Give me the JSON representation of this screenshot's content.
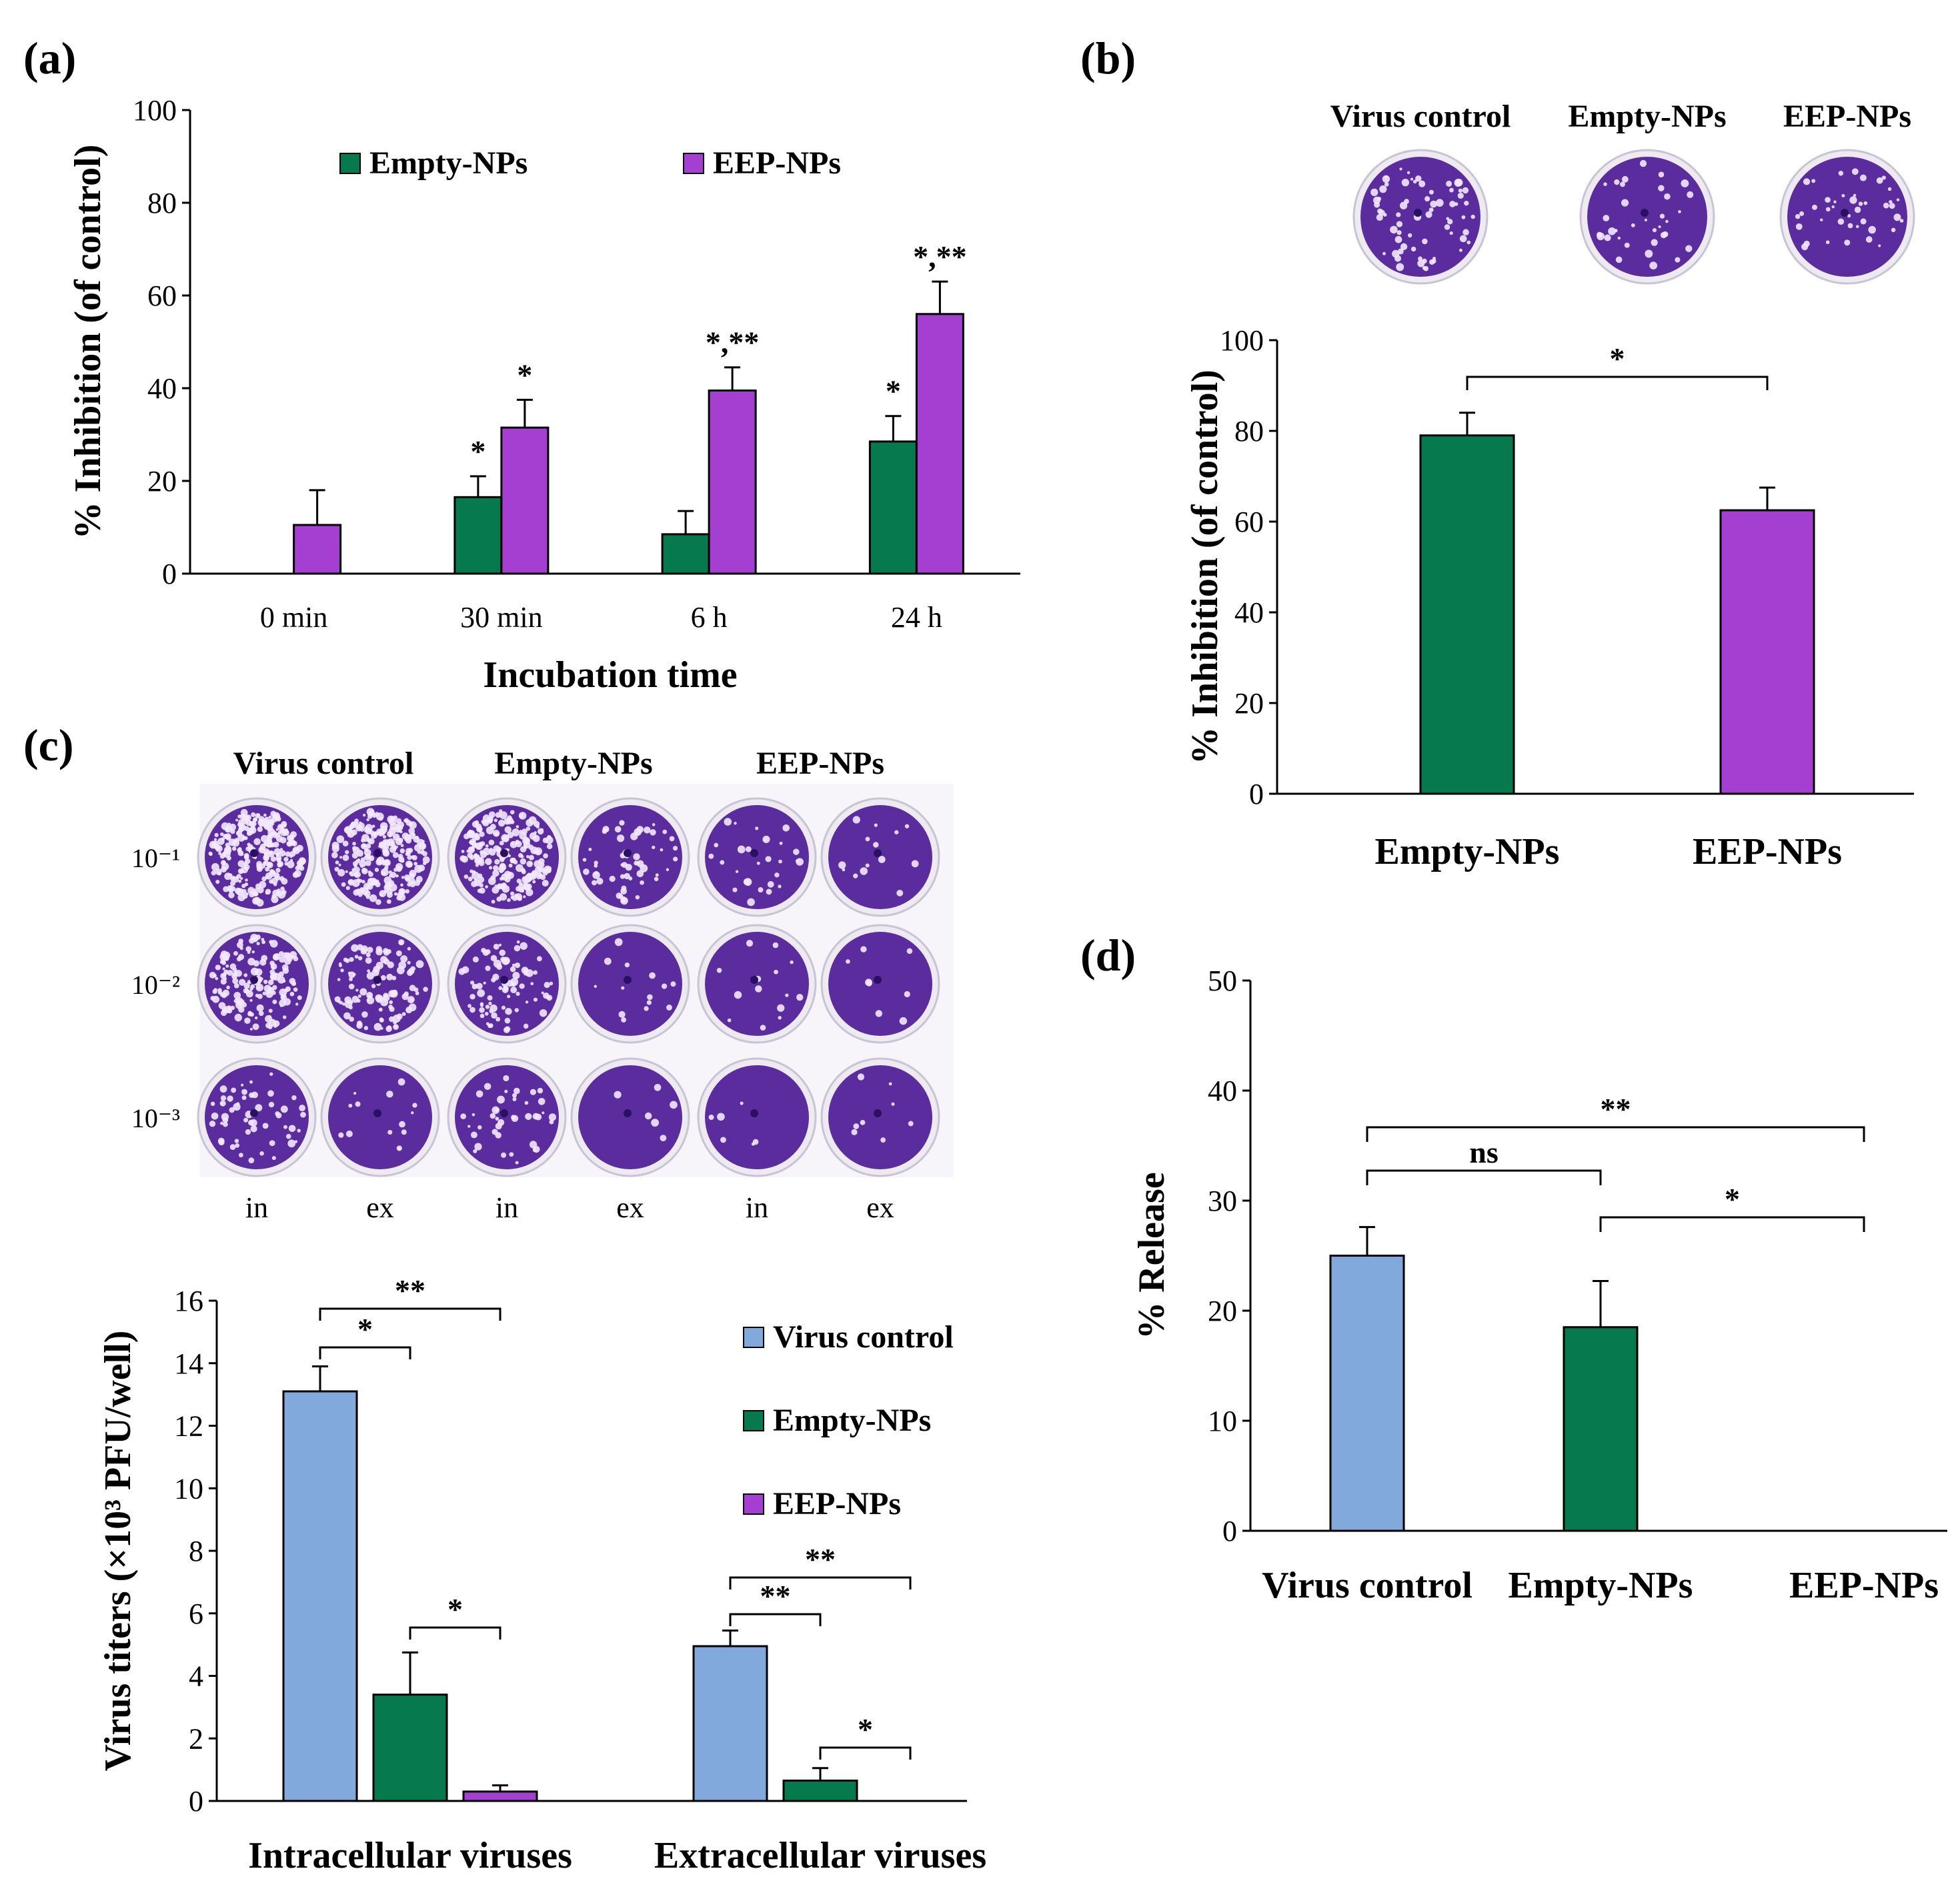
{
  "colors": {
    "green": "#067a4e",
    "purple": "#a53fd1",
    "blue": "#82a9dc",
    "well_dark": "#5b2c9e",
    "well_plaque": "#f2e8ff"
  },
  "chart_data": [
    {
      "panel": "(a)",
      "type": "bar",
      "ylabel": "% Inhibition (of control)",
      "xlabel": "Incubation time",
      "ylim": [
        0,
        100
      ],
      "yticks": [
        "0",
        "20",
        "40",
        "60",
        "80",
        "100"
      ],
      "categories": [
        "0 min",
        "30 min",
        "6 h",
        "24 h"
      ],
      "series": [
        {
          "name": "Empty-NPs",
          "color": "green",
          "values": [
            0,
            16.5,
            8.5,
            28.5
          ],
          "errors": [
            0,
            4.5,
            5,
            5.5
          ]
        },
        {
          "name": "EEP-NPs",
          "color": "purple",
          "values": [
            10.5,
            31.5,
            39.5,
            56
          ],
          "errors": [
            7.5,
            6,
            5,
            7
          ]
        }
      ],
      "annotations": [
        {
          "category": 1,
          "series": 0,
          "text": "*"
        },
        {
          "category": 1,
          "series": 1,
          "text": "*"
        },
        {
          "category": 2,
          "series": 1,
          "text": "*,**"
        },
        {
          "category": 3,
          "series": 0,
          "text": "*"
        },
        {
          "category": 3,
          "series": 1,
          "text": "*,**"
        }
      ]
    },
    {
      "panel": "(b)",
      "type": "bar",
      "ylabel": "% Inhibition (of control)",
      "ylim": [
        0,
        100
      ],
      "yticks": [
        "0",
        "20",
        "40",
        "60",
        "80",
        "100"
      ],
      "categories": [
        "Empty-NPs",
        "EEP-NPs"
      ],
      "values": [
        79,
        62.5
      ],
      "errors": [
        5,
        5
      ],
      "colors": [
        "green",
        "purple"
      ],
      "photo_labels": [
        "Virus control",
        "Empty-NPs",
        "EEP-NPs"
      ],
      "brackets": [
        {
          "from": 0,
          "to": 1,
          "text": "*"
        }
      ]
    },
    {
      "panel": "(c)",
      "type": "bar",
      "ylabel": "Virus titers (×10³ PFU/well)",
      "ylim": [
        0,
        16
      ],
      "yticks": [
        "0",
        "2",
        "4",
        "6",
        "8",
        "10",
        "12",
        "14",
        "16"
      ],
      "categories": [
        "Intracellular viruses",
        "Extracellular viruses"
      ],
      "series": [
        {
          "name": "Virus control",
          "color": "blue",
          "values": [
            13.1,
            4.95
          ],
          "errors": [
            0.8,
            0.5
          ]
        },
        {
          "name": "Empty-NPs",
          "color": "green",
          "values": [
            3.4,
            0.65
          ],
          "errors": [
            1.35,
            0.4
          ]
        },
        {
          "name": "EEP-NPs",
          "color": "purple",
          "values": [
            0.3,
            0
          ],
          "errors": [
            0.2,
            0
          ]
        }
      ],
      "brackets": [
        {
          "group": 0,
          "from": 0,
          "to": 1,
          "text": "*"
        },
        {
          "group": 0,
          "from": 0,
          "to": 2,
          "text": "**"
        },
        {
          "group": 0,
          "from": 1,
          "to": 2,
          "text": "*"
        },
        {
          "group": 1,
          "from": 0,
          "to": 1,
          "text": "**"
        },
        {
          "group": 1,
          "from": 0,
          "to": 2,
          "text": "**"
        },
        {
          "group": 1,
          "from": 1,
          "to": 2,
          "text": "*"
        }
      ],
      "plate": {
        "columns": [
          "Virus control",
          "Empty-NPs",
          "EEP-NPs"
        ],
        "row_labels": [
          "10⁻¹",
          "10⁻²",
          "10⁻³"
        ],
        "col_labels": [
          "in",
          "ex",
          "in",
          "ex",
          "in",
          "ex"
        ],
        "plaque_density": [
          [
            10,
            9,
            8,
            2,
            1,
            0.5
          ],
          [
            6,
            4,
            3,
            0.5,
            0.5,
            0.3
          ],
          [
            2,
            0.5,
            1.5,
            0.2,
            0.2,
            0.3
          ]
        ]
      }
    },
    {
      "panel": "(d)",
      "type": "bar",
      "ylabel": "% Release",
      "ylim": [
        0,
        50
      ],
      "yticks": [
        "0",
        "10",
        "20",
        "30",
        "40",
        "50"
      ],
      "categories": [
        "Virus control",
        "Empty-NPs",
        "EEP-NPs"
      ],
      "values": [
        25,
        18.5,
        0
      ],
      "errors": [
        2.6,
        4.2,
        0
      ],
      "colors": [
        "blue",
        "green",
        "purple"
      ],
      "brackets": [
        {
          "from": 0,
          "to": 1,
          "text": "ns"
        },
        {
          "from": 0,
          "to": 2,
          "text": "**"
        },
        {
          "from": 1,
          "to": 2,
          "text": "*"
        }
      ]
    }
  ]
}
